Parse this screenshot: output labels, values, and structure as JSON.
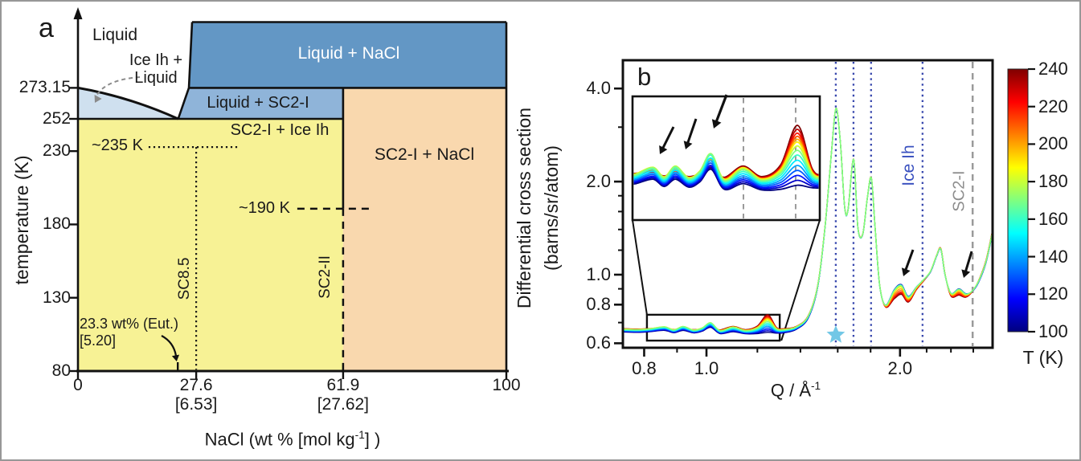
{
  "figure": {
    "panel_a_label": "a",
    "panel_b_label": "b"
  },
  "panel_a": {
    "ylabel": "temperature (K)",
    "xlabel_pre": "NaCl (wt % [mol kg",
    "xlabel_sup": "-1",
    "xlabel_post": "] )",
    "region_labels": {
      "liquid": "Liquid",
      "ice_liquid_line1": "Ice Ih +",
      "ice_liquid_line2": "Liquid",
      "liquid_nacl": "Liquid + NaCl",
      "liquid_sc2i": "Liquid + SC2-I",
      "sc2i_ice": "SC2-I + Ice Ih",
      "sc2i_nacl": "SC2-I + NaCl"
    },
    "annotations": {
      "t235": "~235 K",
      "t190": "~190 K",
      "sc85": "SC8.5",
      "sc2ii": "SC2-II",
      "eut_line1": "23.3 wt% (Eut.)",
      "eut_line2": "[5.20]"
    }
  },
  "panel_b": {
    "ylabel_line1": "Differential cross section",
    "ylabel_line2": "(barns/sr/atom)",
    "xlabel_pre": "Q / Å",
    "xlabel_sup": "-1",
    "ice_ih_label": "Ice Ih",
    "sc2i_label": "SC2-I",
    "colorbar_label_pre": "T (K)",
    "ice_ih_color": "#3950bf",
    "sc2i_color": "#8e8e8e"
  },
  "chart_data": [
    {
      "type": "area",
      "title": "NaCl-H2O phase diagram",
      "xlabel": "NaCl (wt % [mol kg-1])",
      "ylabel": "temperature (K)",
      "xlim": [
        0,
        100
      ],
      "ylim": [
        80,
        318
      ],
      "yticks": [
        {
          "label": "273.15",
          "T": 273.15
        },
        {
          "label": "252",
          "T": 252
        },
        {
          "label": "230",
          "T": 230
        },
        {
          "label": "180",
          "T": 180
        },
        {
          "label": "130",
          "T": 130
        },
        {
          "label": "80",
          "T": 80
        }
      ],
      "xticks": [
        {
          "label": "0",
          "sub": "",
          "w": 0
        },
        {
          "label": "27.6",
          "sub": "[6.53]",
          "w": 27.6
        },
        {
          "label": "61.9",
          "sub": "[27.62]",
          "w": 61.9
        },
        {
          "label": "100",
          "sub": "",
          "w": 100
        }
      ],
      "eutectic": {
        "w": 23.3,
        "T": 252,
        "molality": 5.2
      },
      "liquidus": {
        "start": [
          0,
          273.15
        ],
        "ctrl": [
          12,
          267
        ],
        "end": [
          23.4,
          252
        ]
      },
      "regions": [
        {
          "name": "Ice Ih + Liquid",
          "color": "#cfe0ef"
        },
        {
          "name": "Liquid + NaCl",
          "color": "#6397c5",
          "poly": [
            [
              26.64,
              318
            ],
            [
              100,
              318
            ],
            [
              100,
              273.15
            ],
            [
              25.89,
              273.15
            ]
          ]
        },
        {
          "name": "Liquid + SC2-I",
          "color": "#8fb4d9",
          "poly": [
            [
              23.4,
              252
            ],
            [
              25.89,
              273.15
            ],
            [
              61.9,
              273.15
            ],
            [
              61.9,
              252
            ]
          ]
        },
        {
          "name": "SC2-I + Ice Ih",
          "color": "#f7f295",
          "poly": [
            [
              0,
              252
            ],
            [
              61.9,
              252
            ],
            [
              61.9,
              80
            ],
            [
              0,
              80
            ]
          ]
        },
        {
          "name": "SC2-I + NaCl",
          "color": "#f9d8ae",
          "poly": [
            [
              61.9,
              273.15
            ],
            [
              100,
              273.15
            ],
            [
              100,
              80
            ],
            [
              61.9,
              80
            ]
          ]
        }
      ],
      "solid_lines": [
        [
          [
            23.4,
            252
          ],
          [
            25.89,
            273.15
          ],
          [
            26.64,
            318
          ]
        ],
        [
          [
            26.64,
            318
          ],
          [
            100,
            318
          ]
        ],
        [
          [
            100,
            318
          ],
          [
            100,
            80
          ]
        ],
        [
          [
            25.89,
            273.15
          ],
          [
            100,
            273.15
          ]
        ],
        [
          [
            0,
            252
          ],
          [
            61.9,
            252
          ]
        ],
        [
          [
            61.9,
            273.15
          ],
          [
            61.9,
            190.7
          ]
        ]
      ],
      "dashed_lines": [
        [
          [
            61.9,
            190.7
          ],
          [
            61.9,
            80
          ]
        ],
        [
          [
            51.2,
            190.7
          ],
          [
            68.9,
            190.7
          ]
        ]
      ],
      "dotted_lines": [
        [
          [
            16.5,
            232.8
          ],
          [
            37.2,
            232.8
          ]
        ],
        [
          [
            27.6,
            232.8
          ],
          [
            27.6,
            81
          ]
        ]
      ]
    },
    {
      "type": "line",
      "xlabel": "Q / Å-1",
      "ylabel": "Differential cross section (barns/sr/atom)",
      "x_scale": "log",
      "y_scale": "log",
      "xlim": [
        0.74,
        2.78
      ],
      "ylim": [
        0.585,
        4.9
      ],
      "xticks_major": [
        0.8,
        1.0,
        2.0
      ],
      "xticks_minor": [
        0.9,
        1.2,
        1.4,
        1.6,
        1.8,
        2.2,
        2.4,
        2.6
      ],
      "yticks_major": [
        4.0,
        2.0,
        1.0,
        0.8,
        0.6
      ],
      "ytick_labels": [
        "4.0",
        "2.0",
        "1.0",
        "0.8",
        "0.6"
      ],
      "yticks_minor": [
        3.0,
        1.8,
        1.6,
        1.4,
        1.2,
        0.9,
        0.7
      ],
      "temperatures": [
        100,
        110,
        120,
        130,
        140,
        150,
        160,
        170,
        180,
        190,
        200,
        210,
        220,
        230,
        240
      ],
      "colormap": [
        [
          0,
          "#00007f"
        ],
        [
          0.125,
          "#0000ff"
        ],
        [
          0.375,
          "#00ffff"
        ],
        [
          0.625,
          "#ffff00"
        ],
        [
          0.875,
          "#ff0000"
        ],
        [
          1,
          "#7f0000"
        ]
      ],
      "bump_profile": [
        [
          100,
          0.35
        ],
        [
          120,
          0.5
        ],
        [
          140,
          0.68
        ],
        [
          160,
          0.92
        ],
        [
          175,
          1.0
        ],
        [
          190,
          0.88
        ],
        [
          205,
          0.5
        ],
        [
          220,
          0.2
        ],
        [
          240,
          0.04
        ]
      ],
      "curve": {
        "q": [
          0.74,
          0.78,
          0.815,
          0.86,
          0.89,
          0.92,
          0.955,
          0.985,
          1.015,
          1.05,
          1.1,
          1.15,
          1.2,
          1.245,
          1.285,
          1.32,
          1.38,
          1.44,
          1.49,
          1.53,
          1.565,
          1.59,
          1.615,
          1.64,
          1.66,
          1.694,
          1.72,
          1.75,
          1.78,
          1.805,
          1.83,
          1.86,
          1.9,
          1.96,
          2.01,
          2.06,
          2.12,
          2.17,
          2.23,
          2.28,
          2.315,
          2.35,
          2.4,
          2.47,
          2.53,
          2.59,
          2.65,
          2.72,
          2.78
        ],
        "base": [
          0.66,
          0.658,
          0.66,
          0.663,
          0.656,
          0.662,
          0.655,
          0.66,
          0.67,
          0.653,
          0.665,
          0.653,
          0.662,
          0.695,
          0.66,
          0.658,
          0.672,
          0.73,
          0.92,
          1.45,
          2.5,
          3.45,
          2.7,
          1.66,
          1.62,
          2.36,
          1.42,
          1.35,
          1.78,
          2.05,
          1.4,
          0.92,
          0.79,
          0.86,
          0.89,
          0.83,
          0.9,
          0.95,
          1.02,
          1.15,
          1.21,
          1.0,
          0.86,
          0.875,
          0.855,
          0.88,
          0.95,
          1.1,
          1.35
        ],
        "dev": [
          0.018,
          0.018,
          0.018,
          0.016,
          0.018,
          0.016,
          0.018,
          0.016,
          0.01,
          0.02,
          0.03,
          0.022,
          0.04,
          0.095,
          0.03,
          0.022,
          0.016,
          0.014,
          0.012,
          0.01,
          0.008,
          0.006,
          0.006,
          0.006,
          0.006,
          0.006,
          0.006,
          0.006,
          0.006,
          0.006,
          0.005,
          0.004,
          -0.01,
          -0.05,
          -0.055,
          -0.03,
          -0.015,
          -0.005,
          0.005,
          0.008,
          0.01,
          0.006,
          -0.015,
          -0.035,
          -0.02,
          0.0,
          0.012,
          0.018,
          0.022
        ],
        "bump": [
          0.005,
          0.005,
          0.007,
          0.015,
          0.006,
          0.018,
          0.006,
          0.012,
          0.03,
          0.005,
          0.01,
          0.005,
          0.008,
          0.01,
          0.006,
          0.005,
          0.005,
          0.004,
          0.003,
          0,
          0,
          0,
          0,
          0,
          0,
          0,
          0,
          0,
          0,
          0,
          0,
          0,
          0.006,
          0.03,
          0.032,
          0.015,
          0.01,
          0.008,
          0.004,
          0.002,
          0,
          0,
          0.01,
          0.022,
          0.01,
          0.006,
          0.003,
          0,
          0
        ]
      },
      "ice_ih_lines_Q": [
        1.589,
        1.693,
        1.803,
        2.168
      ],
      "sc2i_line_Q": 2.594,
      "inset": {
        "Q_range": [
          0.81,
          1.3
        ],
        "sigma_range": [
          0.6,
          0.785
        ],
        "dashed_lines_Q": [
          1.101,
          1.24
        ]
      },
      "zoom_rect": {
        "Q": [
          0.808,
          1.3
        ],
        "sigma": [
          0.612,
          0.742
        ]
      },
      "markers": [
        {
          "name": "star-cyan",
          "color": "#72c7e6",
          "location": "main",
          "Q": 1.589
        },
        {
          "name": "star-orange",
          "color": "#f2714b",
          "location": "inset",
          "Q": 1.015
        },
        {
          "name": "star-green",
          "color": "#2fa658",
          "location": "inset",
          "Q": 1.24
        }
      ],
      "colorbar": {
        "min": 100,
        "max": 240,
        "ticks": [
          240,
          220,
          200,
          180,
          160,
          140,
          120,
          100
        ],
        "label": "T (K)"
      }
    }
  ]
}
